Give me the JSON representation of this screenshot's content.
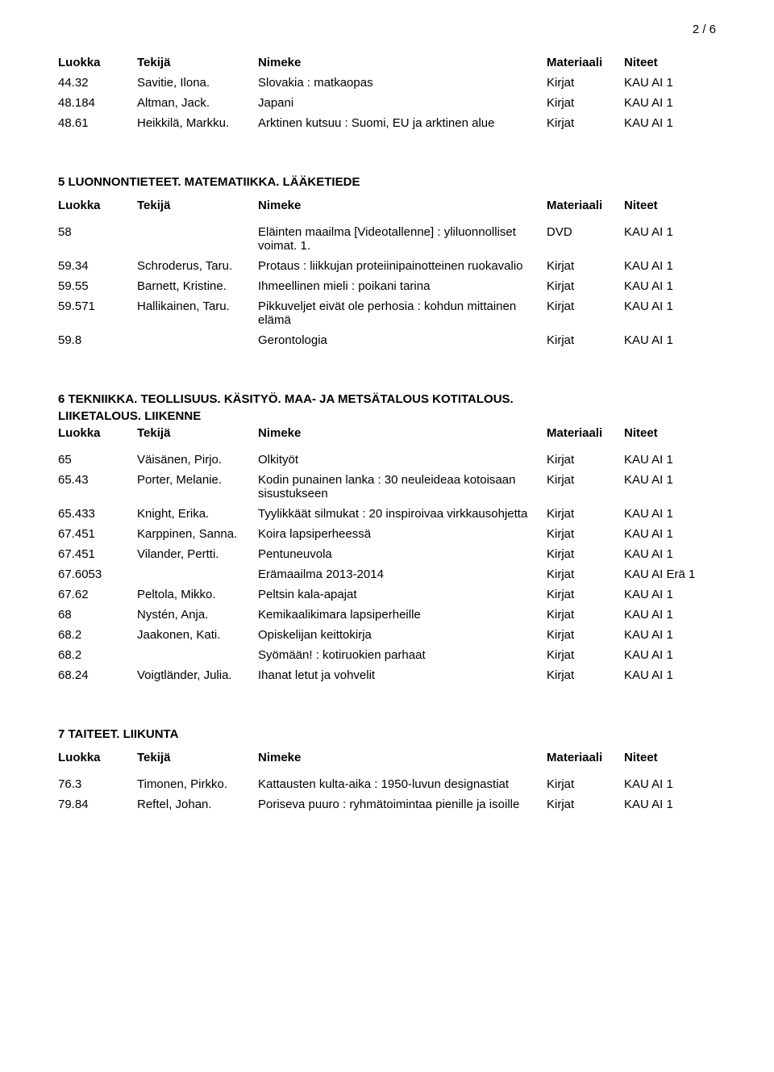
{
  "page_number": "2 / 6",
  "columns": {
    "luokka": "Luokka",
    "tekija": "Tekijä",
    "nimeke": "Nimeke",
    "materiaali": "Materiaali",
    "niteet": "Niteet"
  },
  "sect_top": {
    "rows": [
      {
        "l": "44.32",
        "t": "Savitie, Ilona.",
        "n": "Slovakia : matkaopas",
        "m": "Kirjat",
        "ni": "KAU AI 1"
      },
      {
        "l": "48.184",
        "t": "Altman, Jack.",
        "n": "Japani",
        "m": "Kirjat",
        "ni": "KAU AI 1"
      },
      {
        "l": "48.61",
        "t": "Heikkilä, Markku.",
        "n": "Arktinen kutsuu : Suomi, EU ja arktinen alue",
        "m": "Kirjat",
        "ni": "KAU AI 1"
      }
    ]
  },
  "sect5": {
    "title": "5 LUONNONTIETEET. MATEMATIIKKA. LÄÄKETIEDE",
    "rows": [
      {
        "l": "58",
        "t": "",
        "n": "Eläinten maailma [Videotallenne] : yliluonnolliset voimat. 1.",
        "m": "DVD",
        "ni": "KAU AI 1"
      },
      {
        "l": "59.34",
        "t": "Schroderus, Taru.",
        "n": "Protaus : liikkujan proteiinipainotteinen ruokavalio",
        "m": "Kirjat",
        "ni": "KAU AI 1"
      },
      {
        "l": "59.55",
        "t": "Barnett, Kristine.",
        "n": "Ihmeellinen mieli : poikani tarina",
        "m": "Kirjat",
        "ni": "KAU AI 1"
      },
      {
        "l": "59.571",
        "t": "Hallikainen, Taru.",
        "n": "Pikkuveljet eivät ole perhosia : kohdun mittainen elämä",
        "m": "Kirjat",
        "ni": "KAU AI 1"
      },
      {
        "l": "59.8",
        "t": "",
        "n": "Gerontologia",
        "m": "Kirjat",
        "ni": "KAU AI 1"
      }
    ]
  },
  "sect6": {
    "title_l1": "6 TEKNIIKKA. TEOLLISUUS. KÄSITYÖ. MAA- JA METSÄTALOUS KOTITALOUS.",
    "title_l2": "LIIKETALOUS. LIIKENNE",
    "rows": [
      {
        "l": "65",
        "t": "Väisänen, Pirjo.",
        "n": "Olkityöt",
        "m": "Kirjat",
        "ni": "KAU AI 1"
      },
      {
        "l": "65.43",
        "t": "Porter, Melanie.",
        "n": "Kodin punainen lanka : 30 neuleideaa kotoisaan sisustukseen",
        "m": "Kirjat",
        "ni": "KAU AI 1"
      },
      {
        "l": "65.433",
        "t": "Knight, Erika.",
        "n": "Tyylikkäät silmukat : 20 inspiroivaa virkkausohjetta",
        "m": "Kirjat",
        "ni": "KAU AI 1"
      },
      {
        "l": "67.451",
        "t": "Karppinen, Sanna.",
        "n": "Koira lapsiperheessä",
        "m": "Kirjat",
        "ni": "KAU AI 1"
      },
      {
        "l": "67.451",
        "t": "Vilander, Pertti.",
        "n": "Pentuneuvola",
        "m": "Kirjat",
        "ni": "KAU AI 1"
      },
      {
        "l": "67.6053",
        "t": "",
        "n": "Erämaailma 2013-2014",
        "m": "Kirjat",
        "ni": "KAU AI Erä 1"
      },
      {
        "l": "67.62",
        "t": "Peltola, Mikko.",
        "n": "Peltsin kala-apajat",
        "m": "Kirjat",
        "ni": "KAU AI 1"
      },
      {
        "l": "68",
        "t": "Nystén, Anja.",
        "n": "Kemikaalikimara lapsiperheille",
        "m": "Kirjat",
        "ni": "KAU AI 1"
      },
      {
        "l": "68.2",
        "t": "Jaakonen, Kati.",
        "n": "Opiskelijan keittokirja",
        "m": "Kirjat",
        "ni": "KAU AI 1"
      },
      {
        "l": "68.2",
        "t": "",
        "n": "Syömään! : kotiruokien parhaat",
        "m": "Kirjat",
        "ni": "KAU AI 1"
      },
      {
        "l": "68.24",
        "t": "Voigtländer, Julia.",
        "n": "Ihanat letut ja vohvelit",
        "m": "Kirjat",
        "ni": "KAU AI 1"
      }
    ]
  },
  "sect7": {
    "title": "7 TAITEET. LIIKUNTA",
    "rows": [
      {
        "l": "76.3",
        "t": "Timonen, Pirkko.",
        "n": "Kattausten kulta-aika : 1950-luvun designastiat",
        "m": "Kirjat",
        "ni": "KAU AI 1"
      },
      {
        "l": "79.84",
        "t": "Reftel, Johan.",
        "n": "Poriseva puuro : ryhmätoimintaa pienille ja isoille",
        "m": "Kirjat",
        "ni": "KAU AI 1"
      }
    ]
  }
}
